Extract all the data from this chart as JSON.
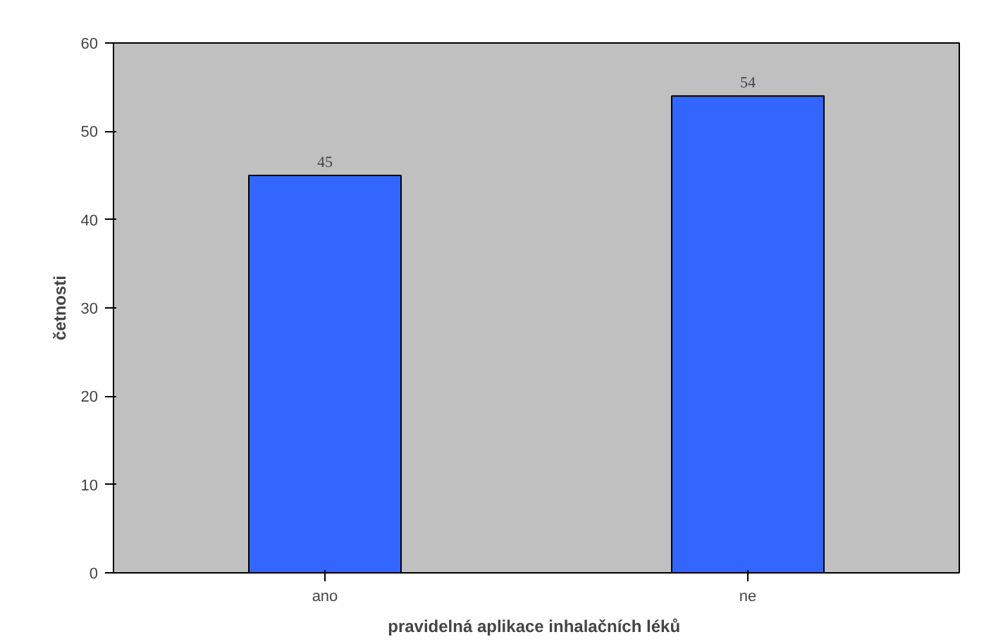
{
  "chart_data": {
    "type": "bar",
    "xlabel": "pravidelná aplikace  inhalačních léků",
    "ylabel": "četnosti",
    "categories": [
      "ano",
      "ne"
    ],
    "series": [
      {
        "color": "#3366ff",
        "values": [
          45,
          54
        ]
      }
    ],
    "ylim": [
      0,
      60
    ],
    "yticks": [
      0,
      10,
      20,
      30,
      40,
      50,
      60
    ],
    "data_labels": true,
    "grid": false
  }
}
